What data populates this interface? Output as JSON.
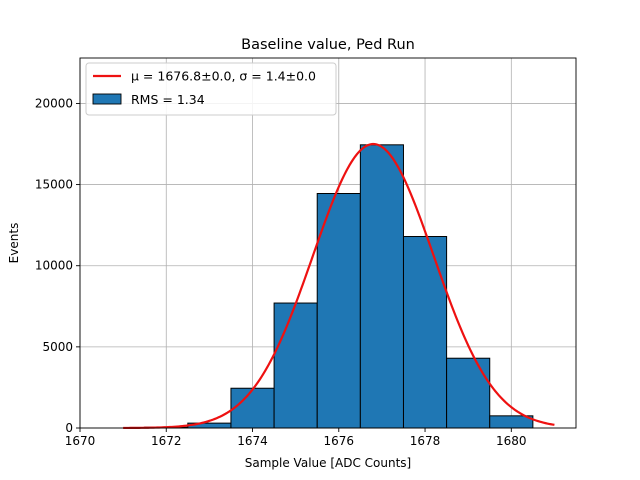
{
  "chart_data": {
    "type": "bar",
    "title": "Baseline value, Ped Run",
    "xlabel": "Sample Value [ADC Counts]",
    "ylabel": "Events",
    "xlim": [
      1670,
      1681.5
    ],
    "ylim": [
      0,
      22800
    ],
    "xticks": [
      1670,
      1672,
      1674,
      1676,
      1678,
      1680
    ],
    "yticks": [
      0,
      5000,
      10000,
      15000,
      20000
    ],
    "grid": true,
    "legend_position": "top-left",
    "bins": [
      {
        "left": 1671.5,
        "right": 1672.5,
        "value": 50
      },
      {
        "left": 1672.5,
        "right": 1673.5,
        "value": 300
      },
      {
        "left": 1673.5,
        "right": 1674.5,
        "value": 2450
      },
      {
        "left": 1674.5,
        "right": 1675.5,
        "value": 7700
      },
      {
        "left": 1675.5,
        "right": 1676.5,
        "value": 14450
      },
      {
        "left": 1676.5,
        "right": 1677.5,
        "value": 17450
      },
      {
        "left": 1677.5,
        "right": 1678.5,
        "value": 11800
      },
      {
        "left": 1678.5,
        "right": 1679.5,
        "value": 4300
      },
      {
        "left": 1679.5,
        "right": 1680.5,
        "value": 750
      }
    ],
    "histogram_color": "#1f77b4",
    "histogram_label": "RMS = 1.34",
    "fit": {
      "type": "gaussian",
      "mu": 1676.8,
      "sigma": 1.4,
      "amplitude": 17500,
      "x_range": [
        1671,
        1681
      ],
      "color": "#ee1111",
      "label": "μ = 1676.8±0.0, σ = 1.4±0.0"
    }
  }
}
